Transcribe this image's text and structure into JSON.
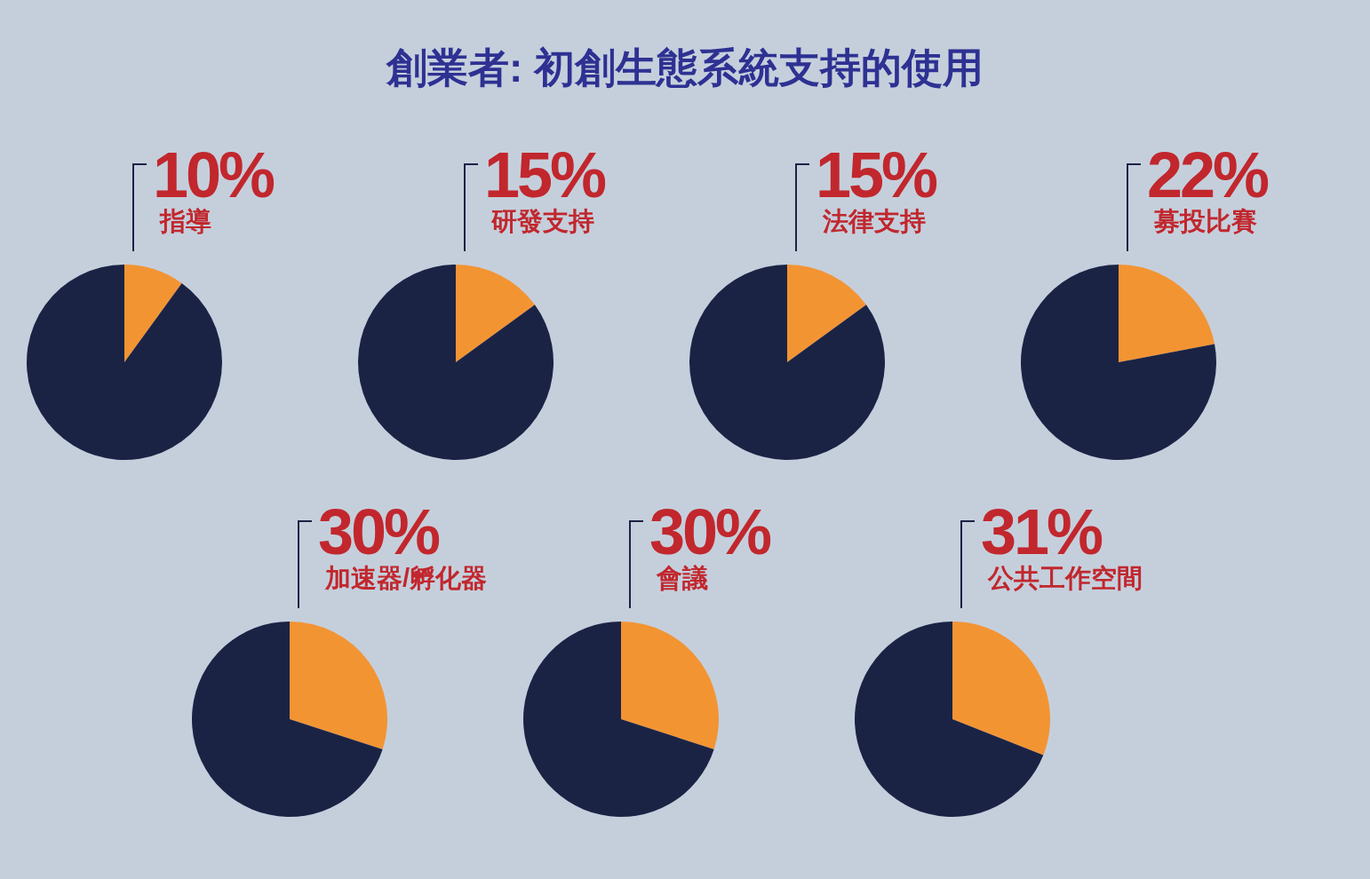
{
  "chart_data": [
    {
      "type": "pie",
      "title": "創業者: 初創生態系統支持的使用",
      "categories": [
        "指導",
        null
      ],
      "values": [
        10,
        90
      ],
      "colors": [
        "#f39433",
        "#1b2345"
      ],
      "value_labels": [
        "10%",
        null
      ]
    },
    {
      "type": "pie",
      "categories": [
        "研發支持",
        null
      ],
      "values": [
        15,
        85
      ],
      "colors": [
        "#f39433",
        "#1b2345"
      ],
      "value_labels": [
        "15%",
        null
      ]
    },
    {
      "type": "pie",
      "categories": [
        "法律支持",
        null
      ],
      "values": [
        15,
        85
      ],
      "colors": [
        "#f39433",
        "#1b2345"
      ],
      "value_labels": [
        "15%",
        null
      ]
    },
    {
      "type": "pie",
      "categories": [
        "募投比賽",
        null
      ],
      "values": [
        22,
        78
      ],
      "colors": [
        "#f39433",
        "#1b2345"
      ],
      "value_labels": [
        "22%",
        null
      ]
    },
    {
      "type": "pie",
      "categories": [
        "加速器/孵化器",
        null
      ],
      "values": [
        30,
        70
      ],
      "colors": [
        "#f39433",
        "#1b2345"
      ],
      "value_labels": [
        "30%",
        null
      ]
    },
    {
      "type": "pie",
      "categories": [
        "會議",
        null
      ],
      "values": [
        30,
        70
      ],
      "colors": [
        "#f39433",
        "#1b2345"
      ],
      "value_labels": [
        "30%",
        null
      ]
    },
    {
      "type": "pie",
      "categories": [
        "公共工作空間",
        null
      ],
      "values": [
        31,
        69
      ],
      "colors": [
        "#f39433",
        "#1b2345"
      ],
      "value_labels": [
        "31%",
        null
      ]
    }
  ]
}
